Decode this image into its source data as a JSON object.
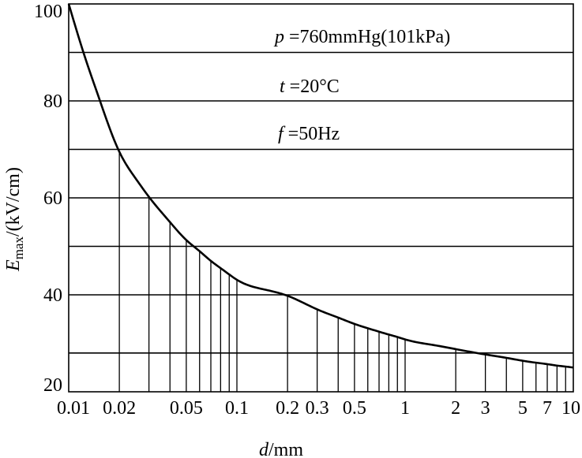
{
  "chart_data": {
    "type": "line",
    "title": "",
    "xlabel_var": "d",
    "xlabel_unit": "/mm",
    "ylabel_var": "E",
    "ylabel_sub": "max",
    "ylabel_unit": "/(kV/cm)",
    "x_scale": "log",
    "xlim": [
      0.01,
      10
    ],
    "ylim": [
      20,
      100
    ],
    "x_ticks": [
      {
        "value": 0.01,
        "label": "0.01"
      },
      {
        "value": 0.02,
        "label": "0.02"
      },
      {
        "value": 0.05,
        "label": "0.05"
      },
      {
        "value": 0.1,
        "label": "0.1"
      },
      {
        "value": 0.2,
        "label": "0.2"
      },
      {
        "value": 0.3,
        "label": "0.3"
      },
      {
        "value": 0.5,
        "label": "0.5"
      },
      {
        "value": 1,
        "label": "1"
      },
      {
        "value": 2,
        "label": "2"
      },
      {
        "value": 3,
        "label": "3"
      },
      {
        "value": 5,
        "label": "5"
      },
      {
        "value": 7,
        "label": "7"
      },
      {
        "value": 10,
        "label": "10"
      }
    ],
    "y_ticks": [
      {
        "value": 20,
        "label": "20"
      },
      {
        "value": 40,
        "label": "40"
      },
      {
        "value": 60,
        "label": "60"
      },
      {
        "value": 80,
        "label": "80"
      },
      {
        "value": 100,
        "label": "100"
      }
    ],
    "y_gridlines": [
      28,
      40,
      50,
      60,
      70,
      80,
      90
    ],
    "x_droplines": [
      0.02,
      0.03,
      0.04,
      0.05,
      0.06,
      0.07,
      0.08,
      0.09,
      0.1,
      0.2,
      0.3,
      0.4,
      0.5,
      0.6,
      0.7,
      0.8,
      0.9,
      1,
      2,
      3,
      4,
      5,
      6,
      7,
      8,
      9
    ],
    "series": [
      {
        "x": [
          0.01,
          0.0125,
          0.015,
          0.02,
          0.025,
          0.03,
          0.04,
          0.05,
          0.06,
          0.07,
          0.08,
          0.09,
          0.1,
          0.15,
          0.2,
          0.3,
          0.4,
          0.5,
          0.6,
          0.7,
          0.8,
          0.9,
          1,
          1.5,
          2,
          3,
          4,
          5,
          6,
          7,
          8,
          9,
          10
        ],
        "y": [
          100,
          89,
          81,
          69.5,
          64,
          60.2,
          55,
          51.3,
          49,
          47,
          45.5,
          44.2,
          43.1,
          41,
          39.8,
          37,
          35.3,
          34,
          33.1,
          32.4,
          31.8,
          31.3,
          30.8,
          29.6,
          28.8,
          27.7,
          27,
          26.4,
          26,
          25.7,
          25.4,
          25.2,
          25
        ]
      }
    ],
    "annotations": [
      {
        "var": "p",
        "rest": " =760mmHg(101kPa)"
      },
      {
        "var": "t",
        "rest": " =20°C"
      },
      {
        "var": "f",
        "rest": " =50Hz"
      }
    ],
    "grid": true,
    "legend": "none"
  }
}
